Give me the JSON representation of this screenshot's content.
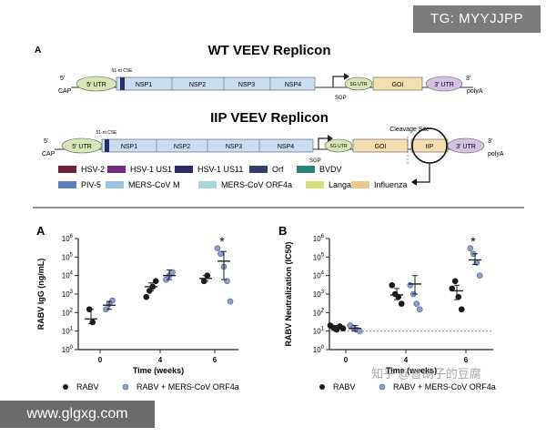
{
  "overlay": {
    "tag": "TG: MYYJJPP",
    "site": "www.glgxg.com",
    "zhihu": "知乎 @智胡子的豆腐"
  },
  "panelA_letter": "A",
  "wt": {
    "title": "WT VEEV Replicon",
    "five_prime": "5'",
    "cap": "CAP",
    "utr5": "5' UTR",
    "cse": "51-nt CSE",
    "nsp": [
      "NSP1",
      "NSP2",
      "NSP3",
      "NSP4"
    ],
    "sg_utr": "SG UTR",
    "goi": "GOI",
    "utr3": "3' UTR",
    "three_prime": "3'",
    "polya": "polyA",
    "sgp": "SGP"
  },
  "iip": {
    "title": "IIP VEEV Replicon",
    "five_prime": "5'",
    "cap": "CAP",
    "utr5": "5' UTR",
    "cse": "51-nt CSE",
    "nsp": [
      "NSP1",
      "NSP2",
      "NSP3",
      "NSP4"
    ],
    "sg_utr": "SG UTR",
    "goi": "GOI",
    "iip": "IIP",
    "utr3": "3' UTR",
    "three_prime": "3'",
    "polya": "polyA",
    "sgp": "SGP",
    "cleavage": "Cleavage Site"
  },
  "legend": [
    {
      "label": "HSV-2",
      "color": "#6e2136"
    },
    {
      "label": "HSV-1 US1",
      "color": "#6c2d86"
    },
    {
      "label": "HSV-1 US11",
      "color": "#2f2a6b"
    },
    {
      "label": "Orf",
      "color": "#2e3f6b"
    },
    {
      "label": "BVDV",
      "color": "#2f8077"
    },
    {
      "label": "PIV-5",
      "color": "#5b7fbf"
    },
    {
      "label": "MERS-CoV M",
      "color": "#9cc2e6"
    },
    {
      "label": "MERS-CoV ORF4a",
      "color": "#a9d6de"
    },
    {
      "label": "Langat",
      "color": "#d5e07a"
    },
    {
      "label": "Influenza",
      "color": "#ebc98a"
    }
  ],
  "colors": {
    "nsp_fill": "#c9ddf2",
    "utr_fill": "#d7e6b5",
    "goi_fill": "#f3deb0",
    "utr3_fill": "#d3c2e4",
    "cse_fill": "#2f2a6b",
    "rabv": "#1a1a1a",
    "orf4a": "#8f9ccc"
  },
  "chart_data": [
    {
      "panel": "A",
      "type": "scatter",
      "title": "",
      "xlabel": "Time (weeks)",
      "ylabel": "RABV IgG (ng/mL)",
      "x_ticks": [
        "0",
        "4",
        "6"
      ],
      "y_scale": "log10",
      "ylim": [
        1,
        1000000
      ],
      "y_tick_labels": [
        "10^1",
        "10^2",
        "10^3",
        "10^4",
        "10^5",
        "10^6"
      ],
      "annotation": {
        "text": "*",
        "x_group": "6"
      },
      "series": [
        {
          "name": "RABV",
          "groups": [
            {
              "x": "0",
              "points": [
                150,
                30
              ],
              "mean": 45,
              "sem_low": 25,
              "sem_high": 150
            },
            {
              "x": "4",
              "points": [
                700,
                1500,
                2500,
                5000
              ],
              "mean": 2500,
              "sem_low": 1500,
              "sem_high": 4000
            },
            {
              "x": "6",
              "points": [
                5000,
                10000
              ],
              "mean": 7000,
              "sem_low": 5000,
              "sem_high": 10000
            }
          ]
        },
        {
          "name": "RABV + MERS-CoV ORF4a",
          "groups": [
            {
              "x": "0",
              "points": [
                150,
                300,
                450
              ],
              "mean": 250,
              "sem_low": 150,
              "sem_high": 400
            },
            {
              "x": "4",
              "points": [
                6000,
                10000,
                15000
              ],
              "mean": 10000,
              "sem_low": 6000,
              "sem_high": 20000
            },
            {
              "x": "6",
              "points": [
                300000,
                150000,
                30000,
                5000,
                400
              ],
              "mean": 60000,
              "sem_low": 6000,
              "sem_high": 200000
            }
          ]
        }
      ],
      "legend": [
        "RABV",
        "RABV + MERS-CoV ORF4a"
      ]
    },
    {
      "panel": "B",
      "type": "scatter",
      "title": "",
      "xlabel": "Time (weeks)",
      "ylabel": "RABV Neutralization (IC50)",
      "x_ticks": [
        "0",
        "4",
        "6"
      ],
      "y_scale": "log10",
      "ylim": [
        1,
        1000000
      ],
      "y_tick_labels": [
        "10^1",
        "10^2",
        "10^3",
        "10^4",
        "10^5",
        "10^6"
      ],
      "reference_line": 10,
      "annotation": {
        "text": "*",
        "x_group": "6"
      },
      "series": [
        {
          "name": "RABV",
          "groups": [
            {
              "x": "0",
              "points": [
                20,
                15,
                12,
                18,
                14
              ],
              "mean": 15,
              "sem_low": 12,
              "sem_high": 20
            },
            {
              "x": "4",
              "points": [
                3000,
                1000,
                700,
                300
              ],
              "mean": 900,
              "sem_low": 500,
              "sem_high": 2000
            },
            {
              "x": "6",
              "points": [
                2000,
                5000,
                700,
                150
              ],
              "mean": 1500,
              "sem_low": 500,
              "sem_high": 3000
            }
          ]
        },
        {
          "name": "RABV + MERS-CoV ORF4a",
          "groups": [
            {
              "x": "0",
              "points": [
                20,
                15,
                12,
                10
              ],
              "mean": 14,
              "sem_low": 10,
              "sem_high": 20
            },
            {
              "x": "4",
              "points": [
                3000,
                1000,
                300,
                150
              ],
              "mean": 3500,
              "sem_low": 1000,
              "sem_high": 10000
            },
            {
              "x": "6",
              "points": [
                300000,
                150000,
                50000,
                10000
              ],
              "mean": 70000,
              "sem_low": 40000,
              "sem_high": 150000
            }
          ]
        }
      ],
      "legend": [
        "RABV",
        "RABV + MERS-CoV ORF4a"
      ]
    }
  ]
}
